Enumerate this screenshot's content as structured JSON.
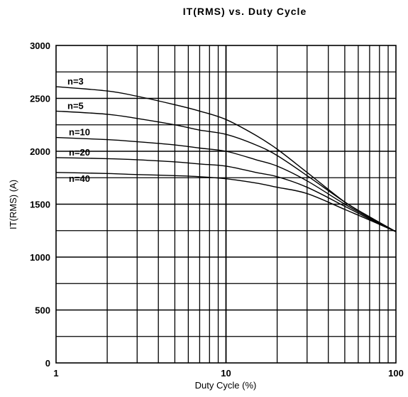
{
  "chart_data": {
    "type": "line",
    "title": "IT(RMS)  vs.  Duty Cycle",
    "xlabel": "Duty Cycle (%)",
    "ylabel": "IT(RMS) (A)",
    "x_scale": "log",
    "xlim": [
      1,
      100
    ],
    "ylim": [
      0,
      3000
    ],
    "x_tick_labels": [
      "1",
      "10",
      "100"
    ],
    "y_tick_labels": [
      "0",
      "500",
      "1000",
      "1500",
      "2000",
      "2500",
      "3000"
    ],
    "grid": true,
    "legend": "inline labels at left",
    "series": [
      {
        "name": "n=3",
        "x": [
          1,
          2,
          3,
          5,
          7,
          10,
          15,
          20,
          30,
          50,
          70,
          100
        ],
        "y": [
          2610,
          2570,
          2520,
          2440,
          2380,
          2300,
          2150,
          2020,
          1800,
          1520,
          1380,
          1240
        ]
      },
      {
        "name": "n=5",
        "x": [
          1,
          2,
          3,
          5,
          7,
          10,
          15,
          20,
          30,
          50,
          70,
          100
        ],
        "y": [
          2380,
          2350,
          2310,
          2250,
          2200,
          2160,
          2060,
          1960,
          1770,
          1520,
          1380,
          1240
        ]
      },
      {
        "name": "n=10",
        "x": [
          1,
          2,
          3,
          5,
          7,
          10,
          15,
          20,
          30,
          50,
          70,
          100
        ],
        "y": [
          2130,
          2110,
          2090,
          2060,
          2030,
          2000,
          1920,
          1860,
          1720,
          1500,
          1370,
          1240
        ]
      },
      {
        "name": "n=20",
        "x": [
          1,
          2,
          3,
          5,
          7,
          10,
          15,
          20,
          30,
          50,
          70,
          100
        ],
        "y": [
          1940,
          1930,
          1920,
          1900,
          1880,
          1860,
          1800,
          1760,
          1660,
          1480,
          1360,
          1240
        ]
      },
      {
        "name": "n=40",
        "x": [
          1,
          2,
          3,
          5,
          7,
          10,
          15,
          20,
          30,
          50,
          70,
          100
        ],
        "y": [
          1800,
          1790,
          1780,
          1770,
          1760,
          1740,
          1700,
          1660,
          1600,
          1450,
          1350,
          1240
        ]
      }
    ]
  }
}
